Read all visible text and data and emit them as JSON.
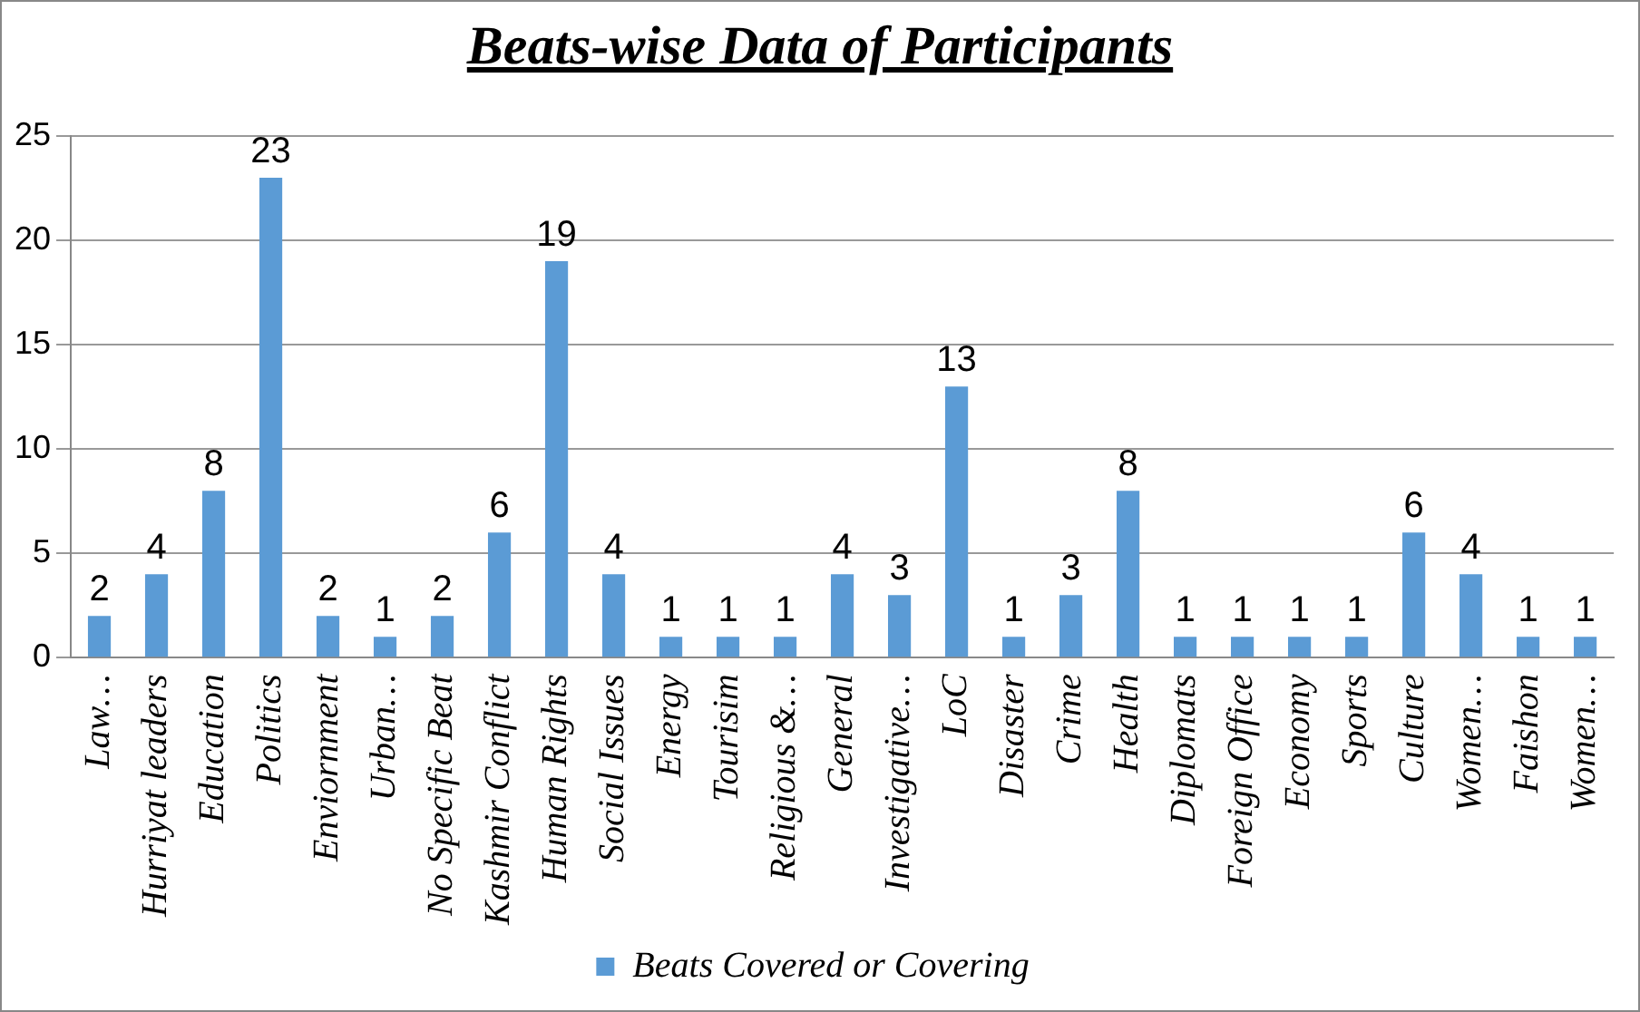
{
  "chart_data": {
    "type": "bar",
    "title": "Beats-wise Data of Participants",
    "categories": [
      "Law…",
      "Hurriyat leaders",
      "Education",
      "Politics",
      "Enviornment",
      "Urban…",
      "No Specific Beat",
      "Kashmir Conflict",
      "Human Rights",
      "Social Issues",
      "Energy",
      "Tourisim",
      "Religious &…",
      "General",
      "Investigative…",
      "LoC",
      "Disaster",
      "Crime",
      "Health",
      "Diplomats",
      "Foreign Office",
      "Economy",
      "Sports",
      "Culture",
      "Women…",
      "Faishon",
      "Women…"
    ],
    "series": [
      {
        "name": "Beats Covered or Covering",
        "color": "#5b9bd5",
        "values": [
          2,
          4,
          8,
          23,
          2,
          1,
          2,
          6,
          19,
          4,
          1,
          1,
          1,
          4,
          3,
          13,
          1,
          3,
          8,
          1,
          1,
          1,
          1,
          6,
          4,
          1,
          1
        ]
      }
    ],
    "ylim": [
      0,
      25
    ],
    "yticks": [
      0,
      5,
      10,
      15,
      20,
      25
    ],
    "grid": "y",
    "legend": "bottom",
    "data_labels": true
  }
}
